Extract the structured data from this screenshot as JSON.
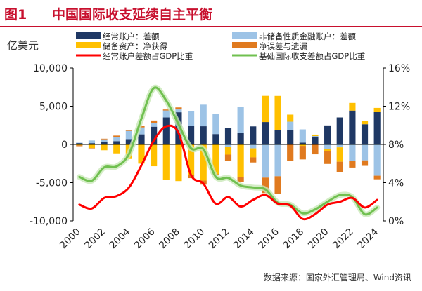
{
  "header": {
    "figure_label": "图1",
    "title": "中国国际收支延续自主平衡"
  },
  "source_note": "数据来源：国家外汇管理局、Wind资讯",
  "colors": {
    "title_bar": "#c8102e",
    "current_account": "#1f3864",
    "non_reserve_financial": "#9dc3e6",
    "reserve_assets": "#ffc000",
    "errors_omissions": "#e07a1f",
    "ca_gdp_line": "#ff0000",
    "basic_bop_gdp_line": "#70c050",
    "basic_bop_gdp_glow": "#c9e9b8"
  },
  "chart_data": {
    "type": "bar",
    "left_axis_unit": "亿美元",
    "categories": [
      "2000",
      "2001",
      "2002",
      "2003",
      "2004",
      "2005",
      "2006",
      "2007",
      "2008",
      "2009",
      "2010",
      "2011",
      "2012",
      "2013",
      "2014",
      "2015",
      "2016",
      "2017",
      "2018",
      "2019",
      "2020",
      "2021",
      "2022",
      "2023",
      "2024"
    ],
    "x_tick_labels": [
      "2000",
      "2002",
      "2004",
      "2006",
      "2008",
      "2010",
      "2012",
      "2014",
      "2016",
      "2018",
      "2020",
      "2022",
      "2024"
    ],
    "y_left": {
      "ylim": [
        -10000,
        10000
      ],
      "tick_values": [
        -10000,
        -5000,
        0,
        5000,
        10000
      ],
      "tick_labels": [
        "-10,000",
        "-5,000",
        "0",
        "5,000",
        "10,000"
      ]
    },
    "y_right": {
      "ylim": [
        0,
        16
      ],
      "tick_values": [
        0,
        4,
        8,
        12,
        16
      ],
      "tick_labels": [
        "0%",
        "4%",
        "8%",
        "12%",
        "16%"
      ]
    },
    "series": [
      {
        "name": "经常账户：差额",
        "kind": "bar",
        "color_key": "current_account",
        "values": [
          200,
          170,
          350,
          430,
          690,
          1320,
          2320,
          3530,
          4210,
          2430,
          2380,
          1360,
          2150,
          1480,
          2360,
          2930,
          1910,
          1880,
          240,
          1030,
          2490,
          3530,
          4430,
          2640,
          4220
        ]
      },
      {
        "name": "非储备性质金融账户：差额",
        "kind": "bar",
        "color_key": "non_reserve_financial",
        "values": [
          20,
          350,
          320,
          550,
          1080,
          910,
          450,
          910,
          370,
          1950,
          2820,
          2600,
          -360,
          3430,
          -510,
          -4340,
          -4160,
          1100,
          1730,
          70,
          -610,
          -380,
          -2110,
          -2090,
          -4090
        ]
      },
      {
        "name": "储备资产：净获得",
        "kind": "bar",
        "color_key": "reserve_assets",
        "values": [
          -110,
          -470,
          -760,
          -1170,
          -1900,
          -2510,
          -2850,
          -4610,
          -4790,
          -4000,
          -4720,
          -3880,
          -970,
          -4310,
          -1180,
          3430,
          4440,
          920,
          -190,
          190,
          -280,
          -1880,
          1000,
          390,
          560
        ]
      },
      {
        "name": "净误差与遗漏",
        "kind": "bar",
        "color_key": "errors_omissions",
        "values": [
          -120,
          -50,
          80,
          180,
          130,
          230,
          360,
          130,
          260,
          -410,
          -530,
          -140,
          -870,
          -630,
          -670,
          -2020,
          -2290,
          -2190,
          -1770,
          -1290,
          -1660,
          -1330,
          -910,
          -710,
          -470
        ]
      },
      {
        "name": "经常账户差额占GDP比重",
        "kind": "line",
        "axis": "right",
        "color_key": "ca_gdp_line",
        "values": [
          1.7,
          1.3,
          2.4,
          2.6,
          3.5,
          5.8,
          8.4,
          9.9,
          9.2,
          4.8,
          3.9,
          1.8,
          2.5,
          1.5,
          2.2,
          2.7,
          1.8,
          1.6,
          0.2,
          0.7,
          1.7,
          2.0,
          2.4,
          1.4,
          2.2
        ]
      },
      {
        "name": "基础国际收支差额占GDP比重",
        "kind": "line",
        "axis": "right",
        "color_key": "basic_bop_gdp_line",
        "values": [
          4.6,
          4.2,
          5.6,
          5.7,
          7.0,
          10.7,
          13.9,
          12.6,
          10.1,
          7.6,
          7.5,
          4.6,
          4.5,
          3.7,
          3.5,
          3.3,
          1.9,
          1.7,
          0.8,
          1.2,
          2.0,
          2.7,
          2.5,
          0.7,
          1.4
        ]
      }
    ]
  }
}
